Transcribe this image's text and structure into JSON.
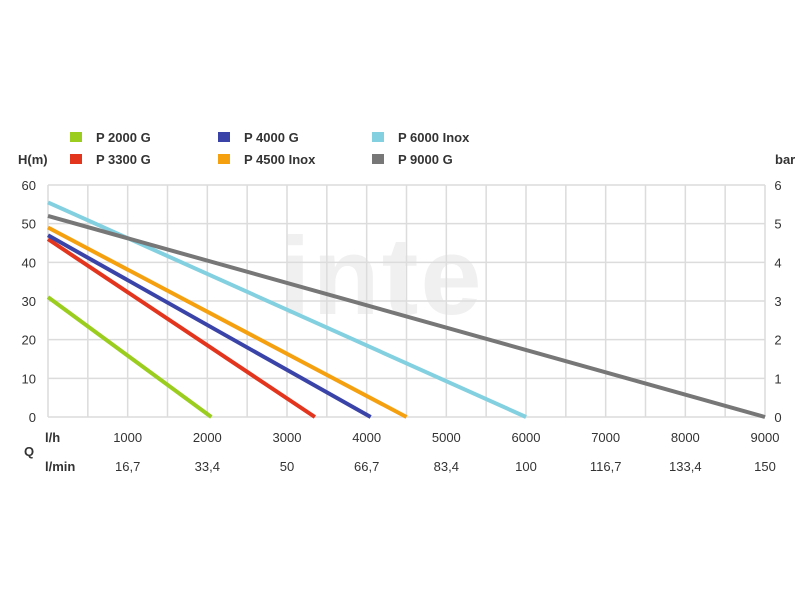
{
  "chart_data": {
    "type": "line",
    "watermark": "inte",
    "left_axis_label": "H(m)",
    "right_axis_label": "bar",
    "q_label": "Q",
    "x_row1_label": "l/h",
    "x_row2_label": "l/min",
    "xlim": [
      0,
      9000
    ],
    "ylim": [
      0,
      60
    ],
    "y_right_lim": [
      0,
      6
    ],
    "y_ticks": [
      "60",
      "50",
      "40",
      "30",
      "20",
      "10",
      "0"
    ],
    "y_right_ticks": [
      "6",
      "5",
      "4",
      "3",
      "2",
      "1",
      "0"
    ],
    "x_ticks_lh": [
      "1000",
      "2000",
      "3000",
      "4000",
      "5000",
      "6000",
      "7000",
      "8000",
      "9000"
    ],
    "x_ticks_lmin": [
      "16,7",
      "33,4",
      "50",
      "66,7",
      "83,4",
      "100",
      "116,7",
      "133,4",
      "150"
    ],
    "grid": true,
    "legend_position": "top",
    "series": [
      {
        "name": "P 2000 G",
        "color": "#9acd1e",
        "x": [
          0,
          2050
        ],
        "y": [
          31,
          0
        ]
      },
      {
        "name": "P 3300 G",
        "color": "#e3341e",
        "x": [
          0,
          3350
        ],
        "y": [
          46,
          0
        ]
      },
      {
        "name": "P 4000 G",
        "color": "#3a44a8",
        "x": [
          0,
          4050
        ],
        "y": [
          47,
          0
        ]
      },
      {
        "name": "P 4500 Inox",
        "color": "#f5a00f",
        "x": [
          0,
          4500
        ],
        "y": [
          49,
          0
        ]
      },
      {
        "name": "P 6000 Inox",
        "color": "#82d0e0",
        "x": [
          0,
          6000
        ],
        "y": [
          55.5,
          0
        ]
      },
      {
        "name": "P 9000 G",
        "color": "#777777",
        "x": [
          0,
          9000
        ],
        "y": [
          52,
          0
        ]
      }
    ]
  }
}
